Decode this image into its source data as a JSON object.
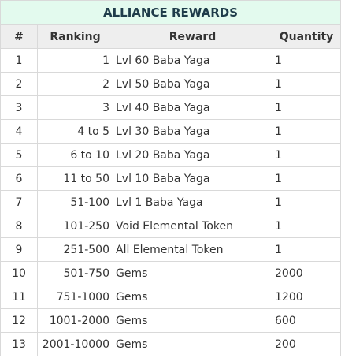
{
  "title": "ALLIANCE REWARDS",
  "columns": [
    "#",
    "Ranking",
    "Reward",
    "Quantity"
  ],
  "rows": [
    {
      "num": "1",
      "ranking": "1",
      "reward": "Lvl 60 Baba Yaga",
      "quantity": "1"
    },
    {
      "num": "2",
      "ranking": "2",
      "reward": "Lvl 50 Baba Yaga",
      "quantity": "1"
    },
    {
      "num": "3",
      "ranking": "3",
      "reward": "Lvl 40 Baba Yaga",
      "quantity": "1"
    },
    {
      "num": "4",
      "ranking": "4 to 5",
      "reward": "Lvl 30 Baba Yaga",
      "quantity": "1"
    },
    {
      "num": "5",
      "ranking": "6 to 10",
      "reward": "Lvl 20 Baba Yaga",
      "quantity": "1"
    },
    {
      "num": "6",
      "ranking": "11 to 50",
      "reward": "Lvl 10 Baba Yaga",
      "quantity": "1"
    },
    {
      "num": "7",
      "ranking": "51-100",
      "reward": "Lvl 1 Baba Yaga",
      "quantity": "1"
    },
    {
      "num": "8",
      "ranking": "101-250",
      "reward": "Void Elemental Token",
      "quantity": "1"
    },
    {
      "num": "9",
      "ranking": "251-500",
      "reward": "All Elemental Token",
      "quantity": "1"
    },
    {
      "num": "10",
      "ranking": "501-750",
      "reward": "Gems",
      "quantity": "2000"
    },
    {
      "num": "11",
      "ranking": "751-1000",
      "reward": "Gems",
      "quantity": "1200"
    },
    {
      "num": "12",
      "ranking": "1001-2000",
      "reward": "Gems",
      "quantity": "600"
    },
    {
      "num": "13",
      "ranking": "2001-10000",
      "reward": "Gems",
      "quantity": "200"
    }
  ]
}
